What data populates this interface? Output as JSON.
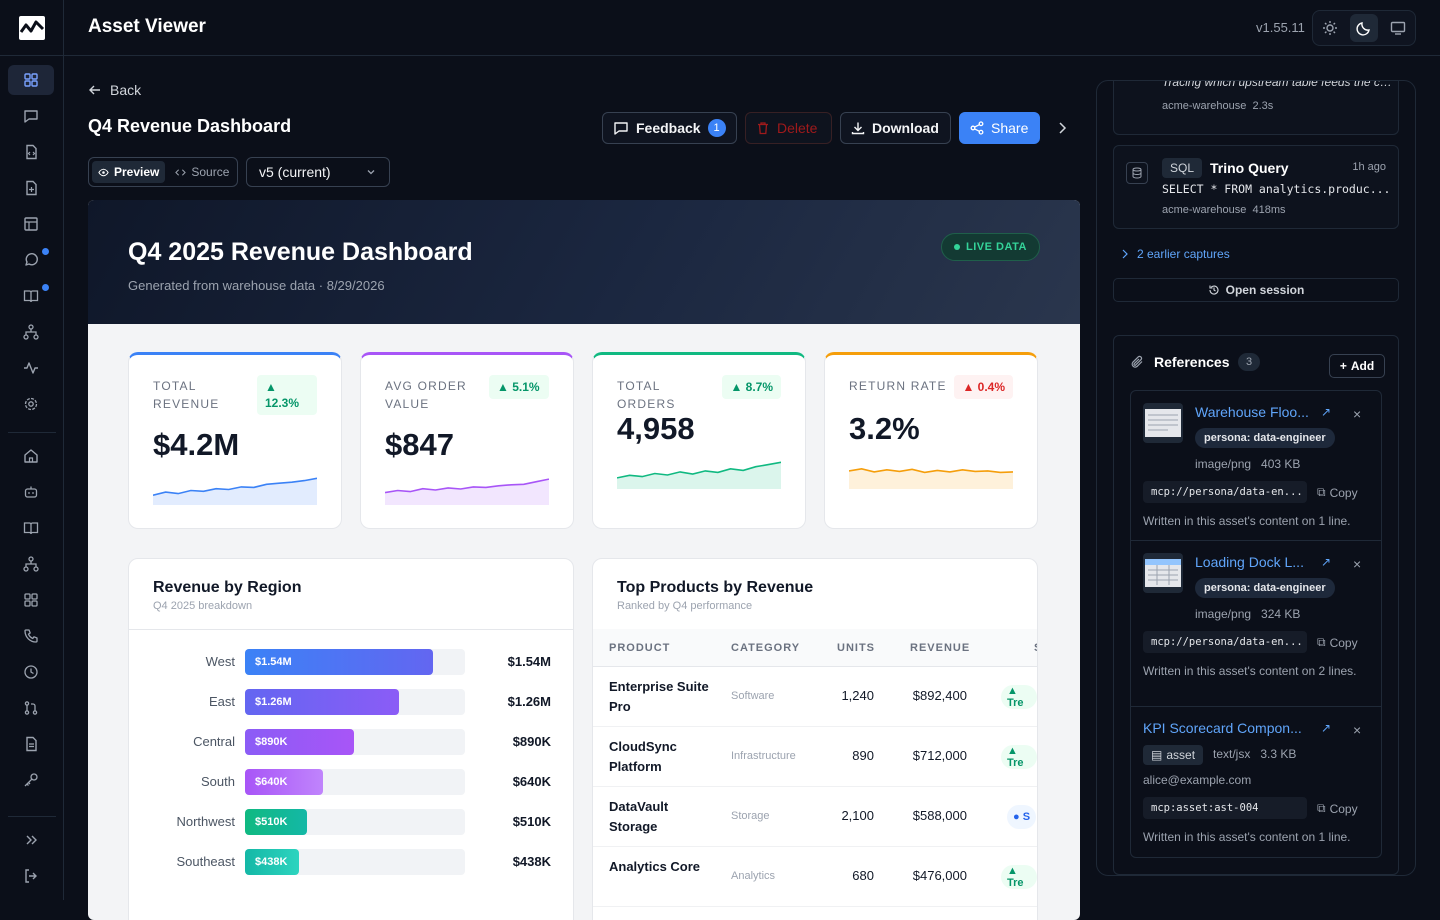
{
  "app": {
    "title": "Asset Viewer",
    "version": "v1.55.11"
  },
  "page": {
    "back_label": "Back",
    "title": "Q4 Revenue Dashboard"
  },
  "toolbar": {
    "feedback_label": "Feedback",
    "feedback_count": "1",
    "delete_label": "Delete",
    "download_label": "Download",
    "share_label": "Share"
  },
  "view_toggle": {
    "preview_label": "Preview",
    "source_label": "Source"
  },
  "version_select": {
    "value": "v5 (current)"
  },
  "dashboard": {
    "title": "Q4 2025 Revenue Dashboard",
    "subtitle": "Generated from warehouse data · 8/29/2026",
    "live_label": "LIVE DATA",
    "kpis": [
      {
        "label": "TOTAL REVENUE",
        "value": "$4.2M",
        "delta": "▲ 12.3%",
        "direction": "up",
        "accent": "#3b82f6",
        "trend": [
          0.3,
          0.42,
          0.36,
          0.48,
          0.45,
          0.55,
          0.52,
          0.62,
          0.6,
          0.72,
          0.76,
          0.8,
          0.86,
          0.95
        ]
      },
      {
        "label": "AVG ORDER VALUE",
        "value": "$847",
        "delta": "▲ 5.1%",
        "direction": "up",
        "accent": "#a855f7",
        "trend": [
          0.4,
          0.48,
          0.44,
          0.55,
          0.5,
          0.58,
          0.54,
          0.62,
          0.6,
          0.66,
          0.7,
          0.72,
          0.82,
          0.92
        ]
      },
      {
        "label": "TOTAL ORDERS",
        "value": "4,958",
        "delta": "▲ 8.7%",
        "direction": "up",
        "accent": "#10b981",
        "trend": [
          0.35,
          0.45,
          0.4,
          0.52,
          0.46,
          0.58,
          0.5,
          0.62,
          0.56,
          0.7,
          0.64,
          0.78,
          0.86,
          0.95
        ]
      },
      {
        "label": "RETURN RATE",
        "value": "3.2%",
        "delta": "▲ 0.4%",
        "direction": "down",
        "accent": "#f59e0b",
        "trend": [
          0.62,
          0.7,
          0.58,
          0.66,
          0.6,
          0.68,
          0.56,
          0.64,
          0.58,
          0.66,
          0.6,
          0.62,
          0.56,
          0.58
        ]
      }
    ],
    "region_panel": {
      "title": "Revenue by Region",
      "subtitle": "Q4 2025 breakdown"
    },
    "products_panel": {
      "title": "Top Products by Revenue",
      "subtitle": "Ranked by Q4 performance",
      "columns": [
        "PRODUCT",
        "CATEGORY",
        "UNITS",
        "REVENUE",
        "S"
      ]
    }
  },
  "chart_data": {
    "type": "bar",
    "categories": [
      "West",
      "East",
      "Central",
      "South",
      "Northwest",
      "Southeast"
    ],
    "values": [
      1.54,
      1.26,
      0.89,
      0.64,
      0.51,
      0.438
    ],
    "value_labels": [
      "$1.54M",
      "$1.26M",
      "$890K",
      "$640K",
      "$510K",
      "$438K"
    ],
    "colors": [
      [
        "#3b82f6",
        "#6366f1"
      ],
      [
        "#6366f1",
        "#8b5cf6"
      ],
      [
        "#8b5cf6",
        "#a855f7"
      ],
      [
        "#a855f7",
        "#c084fc"
      ],
      [
        "#10b981",
        "#14b8a6"
      ],
      [
        "#14b8a6",
        "#2dd4bf"
      ]
    ],
    "title": "Revenue by Region",
    "xlim": [
      0,
      1.8
    ],
    "orientation": "horizontal"
  },
  "products": [
    {
      "name": "Enterprise Suite Pro",
      "category": "Software",
      "units": "1,240",
      "revenue": "$892,400",
      "status": "▲ Tre",
      "kind": "trend"
    },
    {
      "name": "CloudSync Platform",
      "category": "Infrastructure",
      "units": "890",
      "revenue": "$712,000",
      "status": "▲ Tre",
      "kind": "trend"
    },
    {
      "name": "DataVault Storage",
      "category": "Storage",
      "units": "2,100",
      "revenue": "$588,000",
      "status": "● S",
      "kind": "stable"
    },
    {
      "name": "Analytics Core",
      "category": "Analytics",
      "units": "680",
      "revenue": "$476,000",
      "status": "▲ Tre",
      "kind": "trend"
    }
  ],
  "session": {
    "capture1": {
      "text": "Tracing which upstream table feeds the churn model before the retraining...",
      "source": "acme-warehouse",
      "duration": "2.3s"
    },
    "capture2": {
      "tag": "SQL",
      "title": "Trino Query",
      "time": "1h ago",
      "query": "SELECT * FROM analytics.produc...",
      "source": "acme-warehouse",
      "duration": "418ms"
    },
    "earlier_label": "2 earlier captures",
    "open_label": "Open session"
  },
  "references": {
    "title": "References",
    "count": "3",
    "add_label": "Add",
    "copy_label": "Copy",
    "items": [
      {
        "name": "Warehouse Floo...",
        "persona": "persona: data-engineer",
        "meta": "image/png   403 KB",
        "uri": "mcp://persona/data-en...",
        "note": "Written in this asset's content on 1 line."
      },
      {
        "name": "Loading Dock L...",
        "persona": "persona: data-engineer",
        "meta": "image/png   324 KB",
        "uri": "mcp://persona/data-en...",
        "note": "Written in this asset's content on 2 lines."
      },
      {
        "name": "KPI Scorecard Compon...",
        "chip": "asset",
        "meta": "text/jsx   3.3 KB",
        "owner": "alice@example.com",
        "uri": "mcp:asset:ast-004",
        "note": "Written in this asset's content on 1 line."
      }
    ]
  }
}
